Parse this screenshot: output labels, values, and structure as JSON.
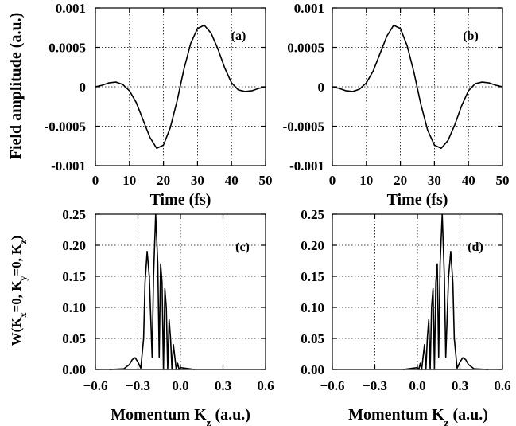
{
  "figure": {
    "ylabel_top": "Field amplitude (a.u.)",
    "ylabel_bottom_parts": [
      "W(K",
      "x",
      "=0, K",
      "y",
      "=0, K",
      "z",
      ")"
    ],
    "xlabel_bottom_parts": [
      "Momentum K",
      "z",
      " (a.u.)"
    ]
  },
  "chart_data": [
    {
      "type": "line",
      "panel_label": "(a)",
      "xlabel": "Time (fs)",
      "ylabel": "Field amplitude (a.u.)",
      "xlim": [
        0,
        50
      ],
      "ylim": [
        -0.001,
        0.001
      ],
      "x_ticks": [
        "0",
        "10",
        "20",
        "30",
        "40",
        "50"
      ],
      "y_ticks": [
        "-0.001",
        "-0.0005",
        "0",
        "0.0005",
        "0.001"
      ],
      "grid": true,
      "series": [
        {
          "x": [
            0,
            2,
            4,
            6,
            8,
            10,
            12,
            14,
            16,
            18,
            20,
            22,
            24,
            26,
            28,
            30,
            32,
            34,
            36,
            38,
            40,
            42,
            44,
            46,
            48,
            50
          ],
          "y": [
            0,
            2e-05,
            5e-05,
            6e-05,
            3e-05,
            -5e-05,
            -0.0002,
            -0.00042,
            -0.00064,
            -0.00078,
            -0.00074,
            -0.00052,
            -0.00018,
            0.00022,
            0.00055,
            0.00074,
            0.00078,
            0.00068,
            0.00048,
            0.00024,
            5e-05,
            -4e-05,
            -6e-05,
            -5e-05,
            -2e-05,
            0
          ]
        }
      ]
    },
    {
      "type": "line",
      "panel_label": "(b)",
      "xlabel": "Time (fs)",
      "xlim": [
        0,
        50
      ],
      "ylim": [
        -0.001,
        0.001
      ],
      "x_ticks": [
        "0",
        "10",
        "20",
        "30",
        "40",
        "50"
      ],
      "y_ticks": [
        "-0.001",
        "-0.0005",
        "0",
        "0.0005",
        "0.001"
      ],
      "grid": true,
      "series": [
        {
          "x": [
            0,
            2,
            4,
            6,
            8,
            10,
            12,
            14,
            16,
            18,
            20,
            22,
            24,
            26,
            28,
            30,
            32,
            34,
            36,
            38,
            40,
            42,
            44,
            46,
            48,
            50
          ],
          "y": [
            0,
            -2e-05,
            -5e-05,
            -6e-05,
            -3e-05,
            5e-05,
            0.0002,
            0.00042,
            0.00064,
            0.00078,
            0.00074,
            0.00052,
            0.00018,
            -0.00022,
            -0.00055,
            -0.00074,
            -0.00078,
            -0.00068,
            -0.00048,
            -0.00024,
            -5e-05,
            4e-05,
            6e-05,
            5e-05,
            2e-05,
            0
          ]
        }
      ]
    },
    {
      "type": "line",
      "panel_label": "(c)",
      "xlim": [
        -0.6,
        0.6
      ],
      "ylim": [
        0,
        0.25
      ],
      "x_ticks": [
        "−0.6",
        "−0.3",
        "0.0",
        "0.3",
        "0.6"
      ],
      "y_ticks": [
        "0.00",
        "0.05",
        "0.10",
        "0.15",
        "0.20",
        "0.25"
      ],
      "grid": true,
      "series": [
        {
          "x": [
            -0.5,
            -0.4,
            -0.36,
            -0.34,
            -0.32,
            -0.3,
            -0.28,
            -0.26,
            -0.25,
            -0.235,
            -0.22,
            -0.2,
            -0.19,
            -0.175,
            -0.16,
            -0.15,
            -0.14,
            -0.13,
            -0.12,
            -0.11,
            -0.1,
            -0.09,
            -0.08,
            -0.07,
            -0.06,
            -0.05,
            -0.04,
            -0.03,
            -0.02,
            -0.01,
            0.0,
            0.1
          ],
          "y": [
            0,
            0.001,
            0.008,
            0.016,
            0.019,
            0.012,
            0.002,
            0.05,
            0.14,
            0.19,
            0.15,
            0.02,
            0.15,
            0.25,
            0.17,
            0.02,
            0.17,
            0.14,
            0.0,
            0.13,
            0.1,
            0.0,
            0.08,
            0.05,
            0.0,
            0.04,
            0.02,
            0.0,
            0.01,
            0.0,
            0.003,
            0
          ]
        }
      ]
    },
    {
      "type": "line",
      "panel_label": "(d)",
      "xlim": [
        -0.6,
        0.6
      ],
      "ylim": [
        0,
        0.25
      ],
      "x_ticks": [
        "−0.6",
        "−0.3",
        "0.0",
        "0.3",
        "0.6"
      ],
      "y_ticks": [
        "0.00",
        "0.05",
        "0.10",
        "0.15",
        "0.20",
        "0.25"
      ],
      "grid": true,
      "series": [
        {
          "x": [
            -0.1,
            0.0,
            0.01,
            0.02,
            0.03,
            0.04,
            0.05,
            0.06,
            0.07,
            0.08,
            0.09,
            0.1,
            0.11,
            0.12,
            0.13,
            0.14,
            0.15,
            0.16,
            0.175,
            0.19,
            0.2,
            0.22,
            0.235,
            0.25,
            0.26,
            0.28,
            0.3,
            0.32,
            0.34,
            0.36,
            0.4,
            0.5
          ],
          "y": [
            0,
            0.003,
            0.0,
            0.01,
            0.0,
            0.02,
            0.04,
            0.0,
            0.05,
            0.08,
            0.0,
            0.1,
            0.13,
            0.0,
            0.14,
            0.17,
            0.02,
            0.17,
            0.25,
            0.15,
            0.02,
            0.15,
            0.19,
            0.14,
            0.05,
            0.002,
            0.012,
            0.019,
            0.016,
            0.008,
            0.001,
            0
          ]
        }
      ]
    }
  ]
}
